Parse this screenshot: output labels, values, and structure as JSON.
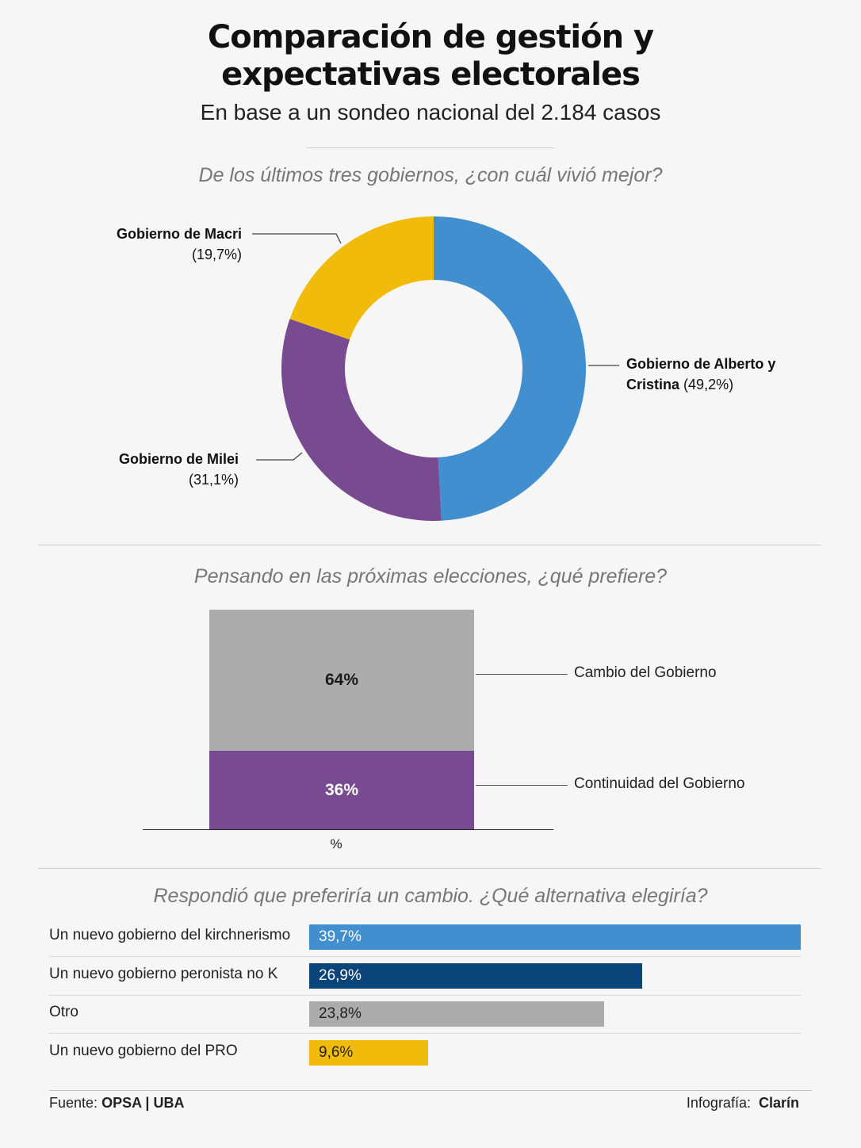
{
  "header": {
    "title_line1": "Comparación de gestión y",
    "title_line2": "expectativas electorales",
    "subtitle": "En base a un sondeo nacional del 2.184 casos"
  },
  "colors": {
    "blue": "#418fcf",
    "yellow": "#f0bb0a",
    "purple": "#784a8f",
    "gray": "#acacac",
    "navy": "#0b4479"
  },
  "chart_data": [
    {
      "type": "pie",
      "title": "De los últimos tres gobiernos, ¿con cuál vivió mejor?",
      "donut": true,
      "series": [
        {
          "name": "Gobierno de Alberto y Cristina",
          "value": 49.2,
          "label": "(49,2%)",
          "color": "#418fcf"
        },
        {
          "name": "Gobierno de Milei",
          "value": 31.1,
          "label": "(31,1%)",
          "color": "#784a8f"
        },
        {
          "name": "Gobierno de Macri",
          "value": 19.7,
          "label": "(19,7%)",
          "color": "#f0bb0a"
        }
      ]
    },
    {
      "type": "bar",
      "stacked": true,
      "title": "Pensando en las próximas elecciones, ¿qué prefiere?",
      "xlabel": "%",
      "series": [
        {
          "name": "Continuidad del Gobierno",
          "value": 36,
          "label": "36%",
          "color": "#784a8f"
        },
        {
          "name": "Cambio del Gobierno",
          "value": 64,
          "label": "64%",
          "color": "#acacac"
        }
      ]
    },
    {
      "type": "bar",
      "orientation": "horizontal",
      "title": "Respondió que preferiría un cambio. ¿Qué alternativa elegiría?",
      "categories": [
        "Un nuevo gobierno del kirchnerismo",
        "Un nuevo gobierno peronista no K",
        "Otro",
        "Un nuevo gobierno del PRO"
      ],
      "values": [
        39.7,
        26.9,
        23.8,
        9.6
      ],
      "labels": [
        "39,7%",
        "26,9%",
        "23,8%",
        "9,6%"
      ],
      "colors": [
        "#418fcf",
        "#0b4479",
        "#acacac",
        "#f0bb0a"
      ],
      "value_text_colors": [
        "#ffffff",
        "#ffffff",
        "#222222",
        "#222222"
      ]
    }
  ],
  "footer": {
    "source_prefix": "Fuente:",
    "source": "OPSA | UBA",
    "credit_prefix": "Infografía:",
    "credit": "Clarín"
  }
}
